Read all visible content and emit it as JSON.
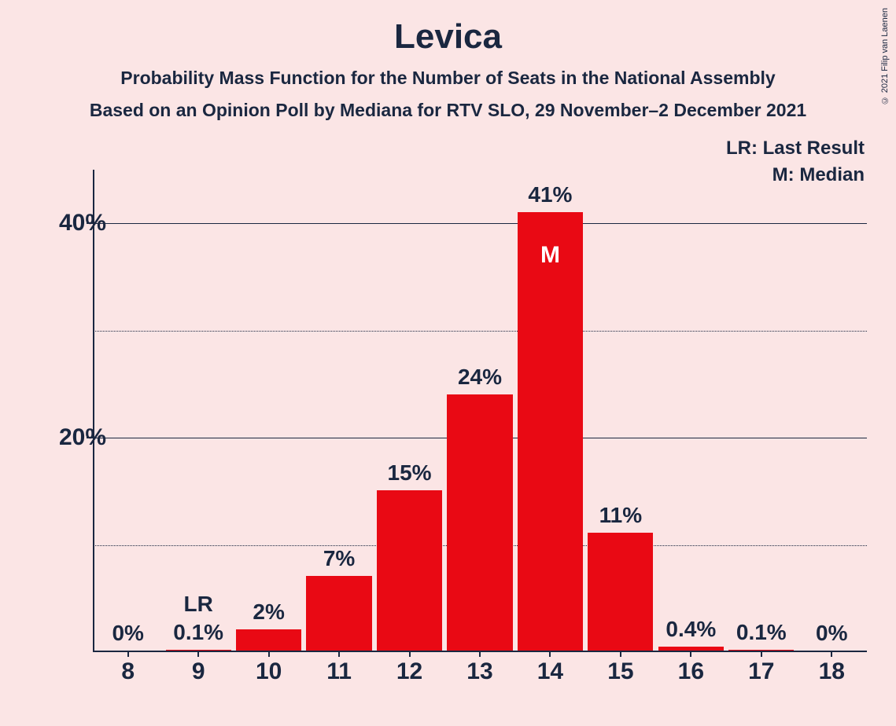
{
  "copyright": "© 2021 Filip van Laenen",
  "title": "Levica",
  "subtitle1": "Probability Mass Function for the Number of Seats in the National Assembly",
  "subtitle2": "Based on an Opinion Poll by Mediana for RTV SLO, 29 November–2 December 2021",
  "legend": {
    "lr": "LR: Last Result",
    "m": "M: Median"
  },
  "chart": {
    "type": "bar",
    "background_color": "#fbe5e5",
    "bar_color": "#e90914",
    "text_color": "#1a2740",
    "median_text_color": "#ffffff",
    "ymax": 45,
    "y_major_ticks": [
      20,
      40
    ],
    "y_minor_ticks": [
      10,
      30
    ],
    "y_tick_labels": {
      "20": "20%",
      "40": "40%"
    },
    "categories": [
      "8",
      "9",
      "10",
      "11",
      "12",
      "13",
      "14",
      "15",
      "16",
      "17",
      "18"
    ],
    "values": [
      0,
      0.1,
      2,
      7,
      15,
      24,
      41,
      11,
      0.4,
      0.1,
      0
    ],
    "value_labels": [
      "0%",
      "0.1%",
      "2%",
      "7%",
      "15%",
      "24%",
      "41%",
      "11%",
      "0.4%",
      "0.1%",
      "0%"
    ],
    "last_result_index": 1,
    "last_result_label": "LR",
    "median_index": 6,
    "median_label": "M",
    "bar_width_ratio": 0.93,
    "title_fontsize": 44,
    "subtitle_fontsize": 23,
    "axis_fontsize": 30,
    "value_label_fontsize": 28
  }
}
